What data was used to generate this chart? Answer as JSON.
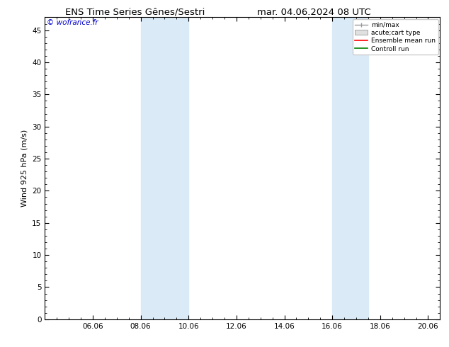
{
  "title_left": "ENS Time Series Gênes/Sestri",
  "title_right": "mar. 04.06.2024 08 UTC",
  "ylabel": "Wind 925 hPa (m/s)",
  "watermark": "© wofrance.fr",
  "background_color": "#ffffff",
  "plot_bg_color": "#ffffff",
  "xlim_start": 4.0,
  "xlim_end": 20.5,
  "ylim_bottom": 0,
  "ylim_top": 47,
  "yticks": [
    0,
    5,
    10,
    15,
    20,
    25,
    30,
    35,
    40,
    45
  ],
  "xtick_labels": [
    "06.06",
    "08.06",
    "10.06",
    "12.06",
    "14.06",
    "16.06",
    "18.06",
    "20.06"
  ],
  "xtick_positions": [
    6,
    8,
    10,
    12,
    14,
    16,
    18,
    20
  ],
  "shaded_bands": [
    {
      "xmin": 8.0,
      "xmax": 10.0
    },
    {
      "xmin": 16.0,
      "xmax": 17.5
    }
  ],
  "shade_color": "#daeaf7",
  "legend_labels": [
    "min/max",
    "acute;cart type",
    "Ensemble mean run",
    "Controll run"
  ],
  "legend_colors": [
    "#999999",
    "#cccccc",
    "#ff0000",
    "#008000"
  ],
  "title_fontsize": 9.5,
  "axis_fontsize": 8,
  "tick_fontsize": 7.5,
  "watermark_color": "#0000cc",
  "watermark_fontsize": 7.5,
  "minor_ticks_x": [
    4.5,
    5,
    5.5,
    6.5,
    7,
    7.5,
    8.5,
    9,
    9.5,
    10.5,
    11,
    11.5,
    12.5,
    13,
    13.5,
    14.5,
    15,
    15.5,
    16.5,
    17,
    17.5,
    18.5,
    19,
    19.5,
    20
  ]
}
